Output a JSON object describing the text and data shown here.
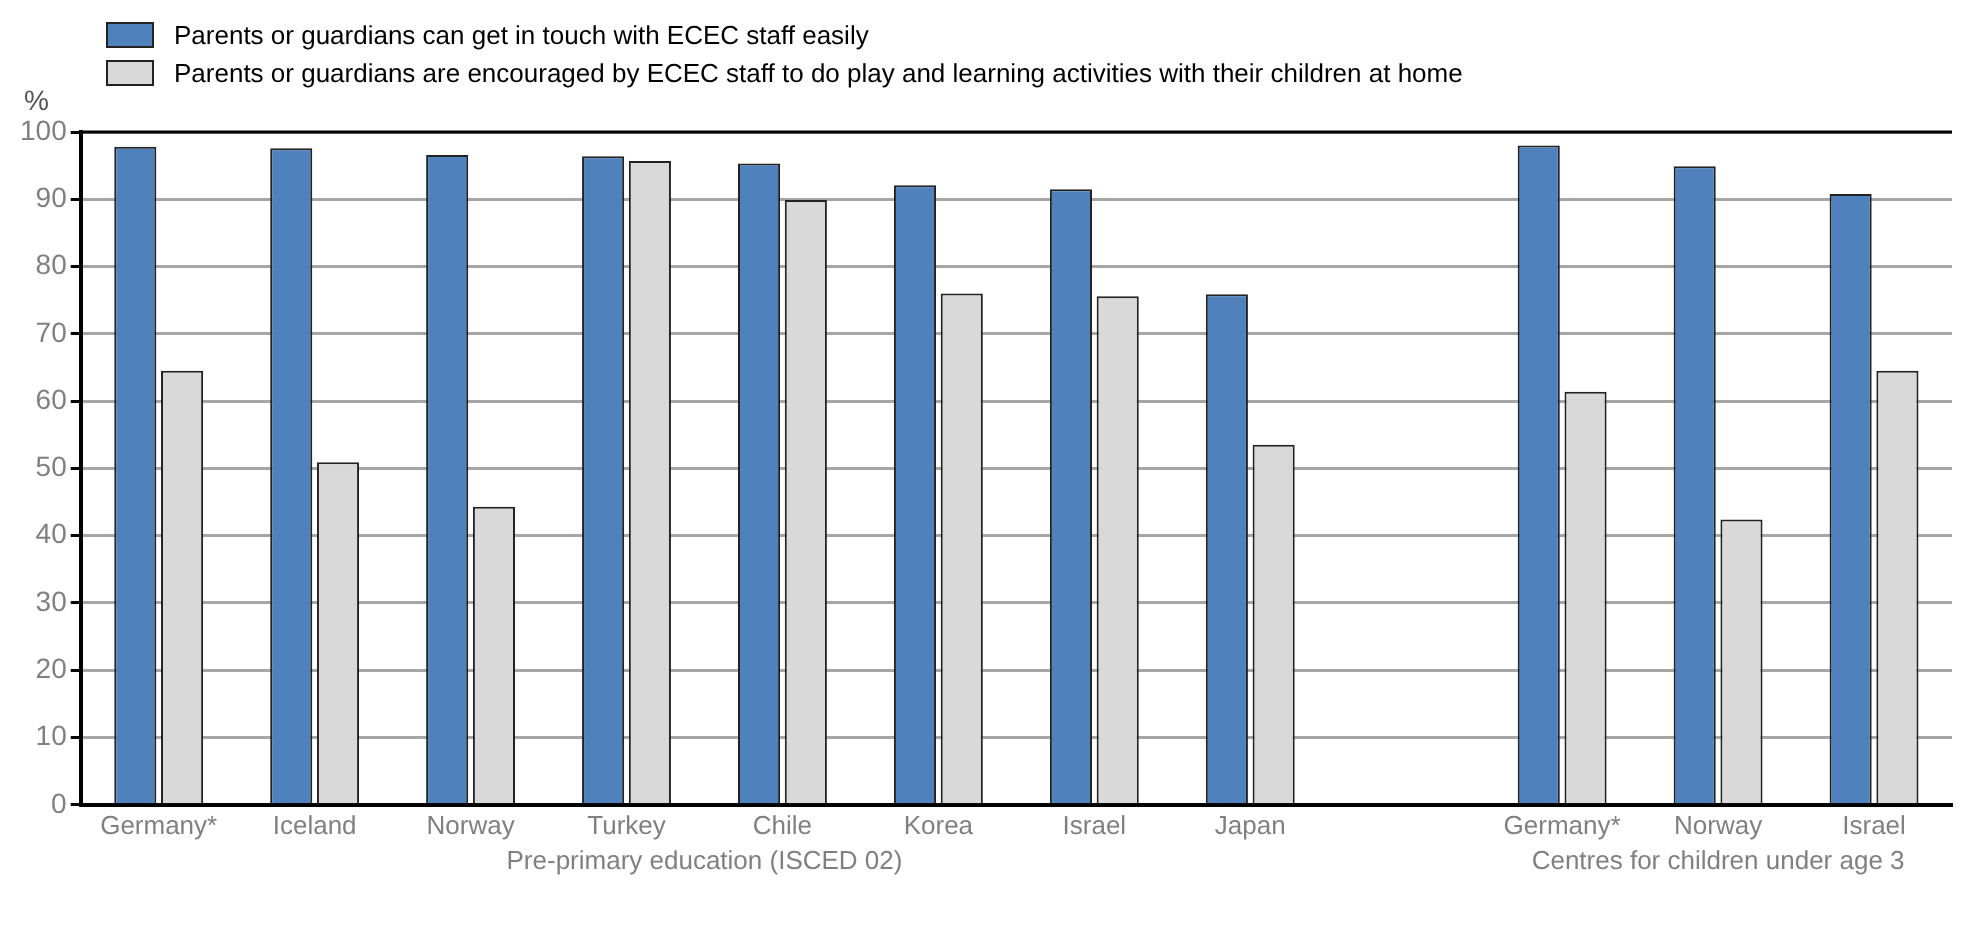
{
  "chart_data": {
    "type": "bar",
    "ylabel": "%",
    "categories": [
      "Germany*",
      "Iceland",
      "Norway",
      "Turkey",
      "Chile",
      "Korea",
      "Israel",
      "Japan",
      null,
      "Germany*",
      "Norway",
      "Israel"
    ],
    "series": [
      {
        "name": "Parents or guardians can get in touch with ECEC staff easily",
        "color": "#4f81bd",
        "values": [
          97.8,
          97.6,
          96.6,
          96.4,
          95.3,
          92.1,
          91.5,
          75.9,
          null,
          98.0,
          94.9,
          90.8
        ]
      },
      {
        "name": "Parents or guardians are encouraged by ECEC staff to do play and learning activities with their children at home",
        "color": "#d9d9d9",
        "values": [
          64.5,
          50.9,
          44.3,
          95.7,
          89.9,
          76.0,
          75.6,
          53.5,
          null,
          61.4,
          42.4,
          64.5
        ]
      }
    ],
    "ylim": [
      0,
      100
    ],
    "yticks": [
      0,
      10,
      20,
      30,
      40,
      50,
      60,
      70,
      80,
      90,
      100
    ],
    "grid": "y",
    "legend": "top left",
    "annotations": [
      "Pre-primary education (ISCED 02)",
      "Centres for children under age 3"
    ]
  }
}
